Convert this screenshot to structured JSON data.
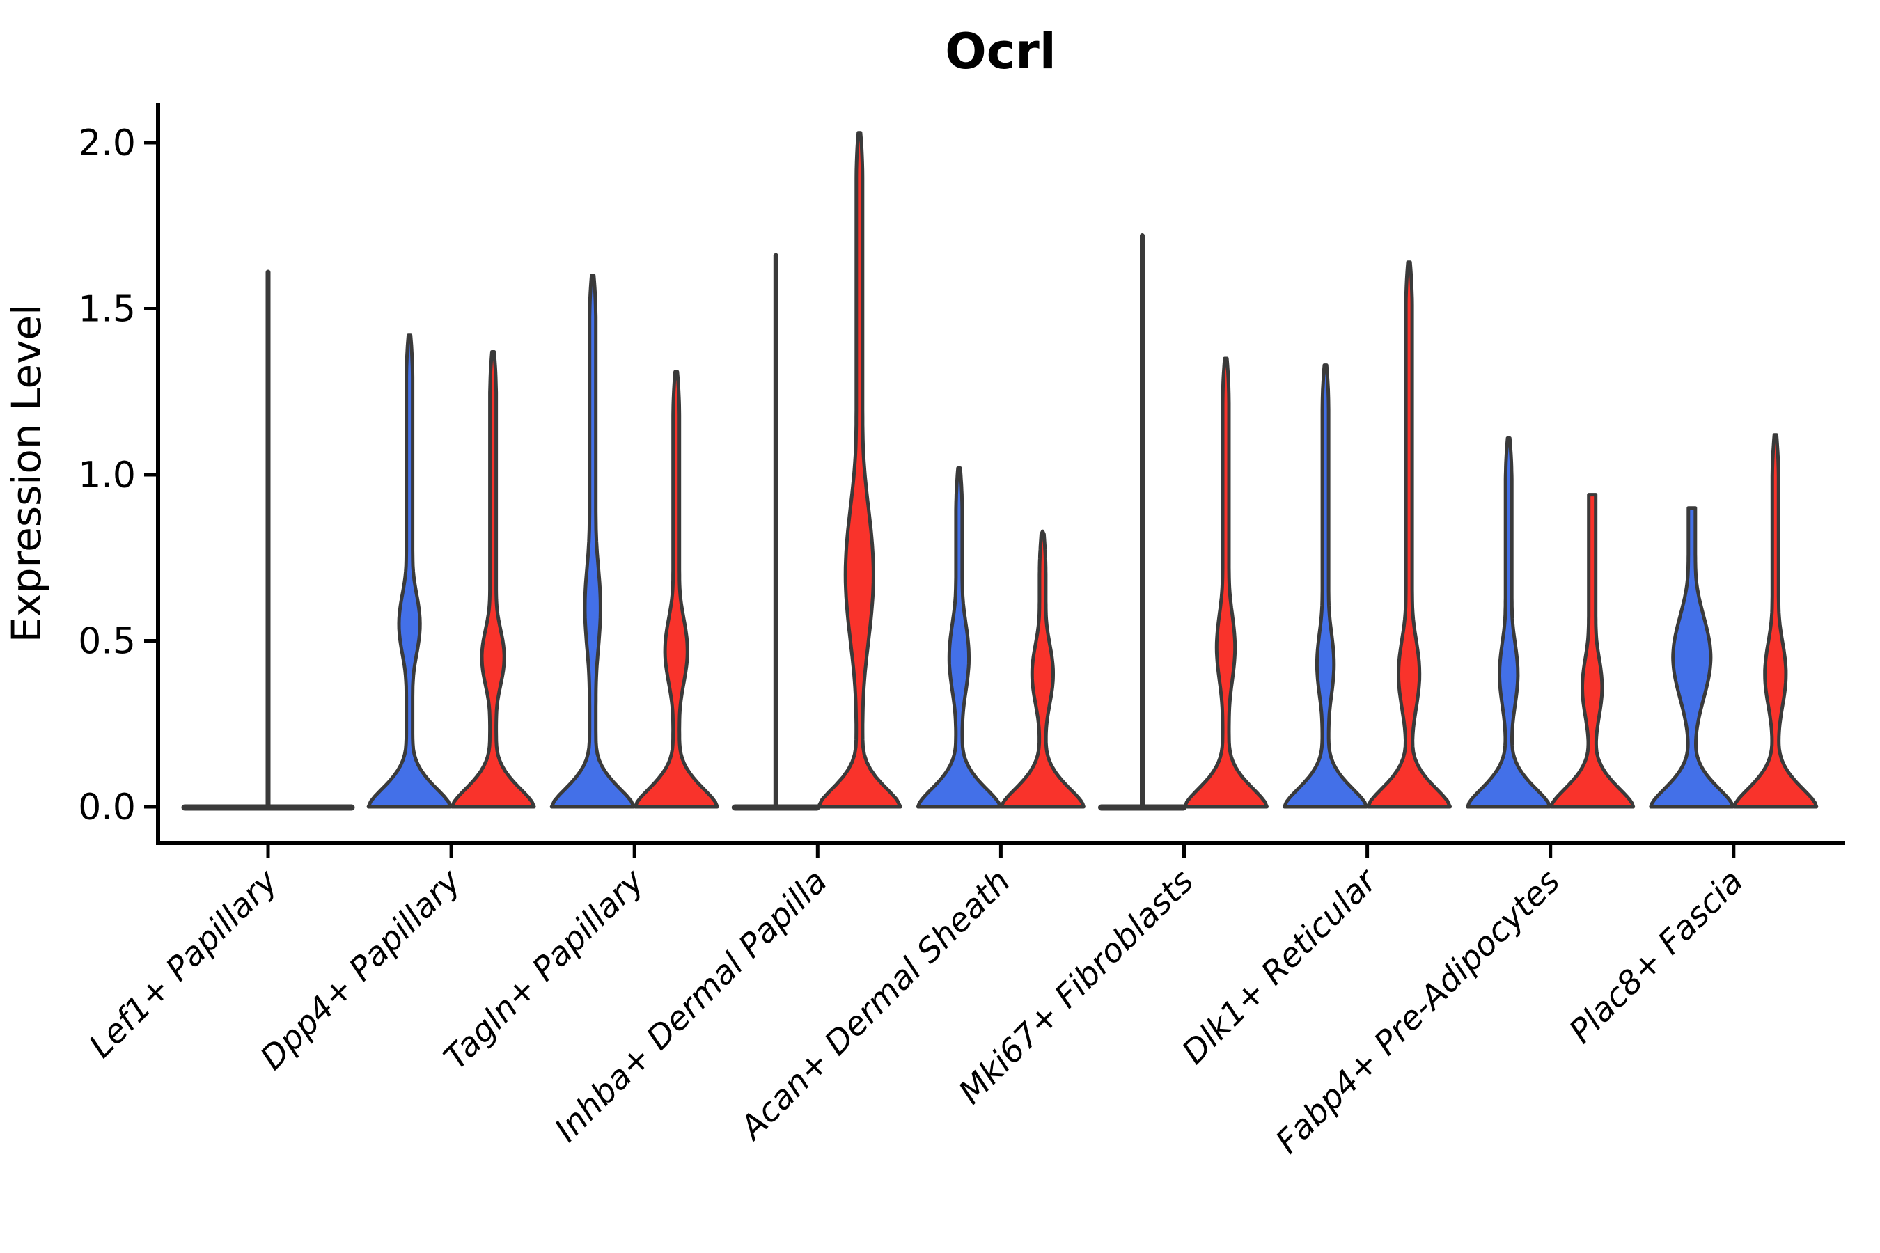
{
  "title": "Ocrl",
  "colors": {
    "blue_fill": "#4370E8",
    "red_fill": "#F9332B",
    "violin_stroke": "#3A3A3A",
    "axis": "#000000"
  },
  "chart_data": {
    "type": "violin",
    "title": "Ocrl",
    "xlabel": "",
    "ylabel": "Expression Level",
    "ylim": [
      0,
      2.12
    ],
    "yticks": [
      0.0,
      0.5,
      1.0,
      1.5,
      2.0
    ],
    "ytick_labels": [
      "0.0",
      "0.5",
      "1.0",
      "1.5",
      "2.0"
    ],
    "grid": false,
    "legend": "none",
    "groups": [
      "blue",
      "red"
    ],
    "group_colors": {
      "blue": "#4370E8",
      "red": "#F9332B"
    },
    "categories": [
      "Lef1+ Papillary",
      "Dpp4+ Papillary",
      "Tagln+ Papillary",
      "Inhba+ Dermal Papilla",
      "Acan+ Dermal Sheath",
      "Mki67+ Fibroblasts",
      "Dlk1+ Reticular",
      "Fabp4+ Pre-Adipocytes",
      "Plac8+ Fascia"
    ],
    "violins": [
      {
        "category": "Lef1+ Papillary",
        "violins": [
          {
            "group": "both",
            "collapsed": true,
            "span": "full",
            "max": 1.61
          }
        ]
      },
      {
        "category": "Dpp4+ Papillary",
        "violins": [
          {
            "group": "blue",
            "max": 1.42,
            "bulge": {
              "center": 0.55,
              "sigma": 0.14,
              "amp": 15
            }
          },
          {
            "group": "red",
            "max": 1.37,
            "bulge": {
              "center": 0.45,
              "sigma": 0.13,
              "amp": 16
            }
          }
        ]
      },
      {
        "category": "Tagln+ Papillary",
        "violins": [
          {
            "group": "blue",
            "max": 1.6,
            "bulge": {
              "center": 0.6,
              "sigma": 0.2,
              "amp": 11
            }
          },
          {
            "group": "red",
            "max": 1.31,
            "bulge": {
              "center": 0.47,
              "sigma": 0.15,
              "amp": 16
            }
          }
        ]
      },
      {
        "category": "Inhba+ Dermal Papilla",
        "violins": [
          {
            "group": "blue",
            "collapsed": true,
            "max": 1.66
          },
          {
            "group": "red",
            "max": 2.03,
            "bulge": {
              "center": 0.7,
              "sigma": 0.3,
              "amp": 20
            }
          }
        ]
      },
      {
        "category": "Acan+ Dermal Sheath",
        "violins": [
          {
            "group": "blue",
            "max": 1.02,
            "bulge": {
              "center": 0.45,
              "sigma": 0.16,
              "amp": 14
            }
          },
          {
            "group": "red",
            "max": 0.83,
            "bulge": {
              "center": 0.4,
              "sigma": 0.14,
              "amp": 15
            }
          }
        ]
      },
      {
        "category": "Mki67+ Fibroblasts",
        "violins": [
          {
            "group": "blue",
            "collapsed": true,
            "max": 1.72
          },
          {
            "group": "red",
            "max": 1.35,
            "bulge": {
              "center": 0.48,
              "sigma": 0.16,
              "amp": 13
            }
          }
        ]
      },
      {
        "category": "Dlk1+ Reticular",
        "violins": [
          {
            "group": "blue",
            "max": 1.33,
            "bulge": {
              "center": 0.43,
              "sigma": 0.15,
              "amp": 12
            }
          },
          {
            "group": "red",
            "max": 1.64,
            "bulge": {
              "center": 0.4,
              "sigma": 0.16,
              "amp": 15
            }
          }
        ]
      },
      {
        "category": "Fabp4+ Pre-Adipocytes",
        "violins": [
          {
            "group": "blue",
            "max": 1.11,
            "bulge": {
              "center": 0.4,
              "sigma": 0.15,
              "amp": 13
            }
          },
          {
            "group": "red",
            "max": 0.94,
            "blunt": true,
            "bulge": {
              "center": 0.36,
              "sigma": 0.14,
              "amp": 14
            }
          }
        ]
      },
      {
        "category": "Plac8+ Fascia",
        "violins": [
          {
            "group": "blue",
            "max": 0.9,
            "blunt": true,
            "bulge": {
              "center": 0.45,
              "sigma": 0.18,
              "amp": 27
            }
          },
          {
            "group": "red",
            "max": 1.12,
            "bulge": {
              "center": 0.4,
              "sigma": 0.15,
              "amp": 15
            }
          }
        ]
      }
    ]
  }
}
